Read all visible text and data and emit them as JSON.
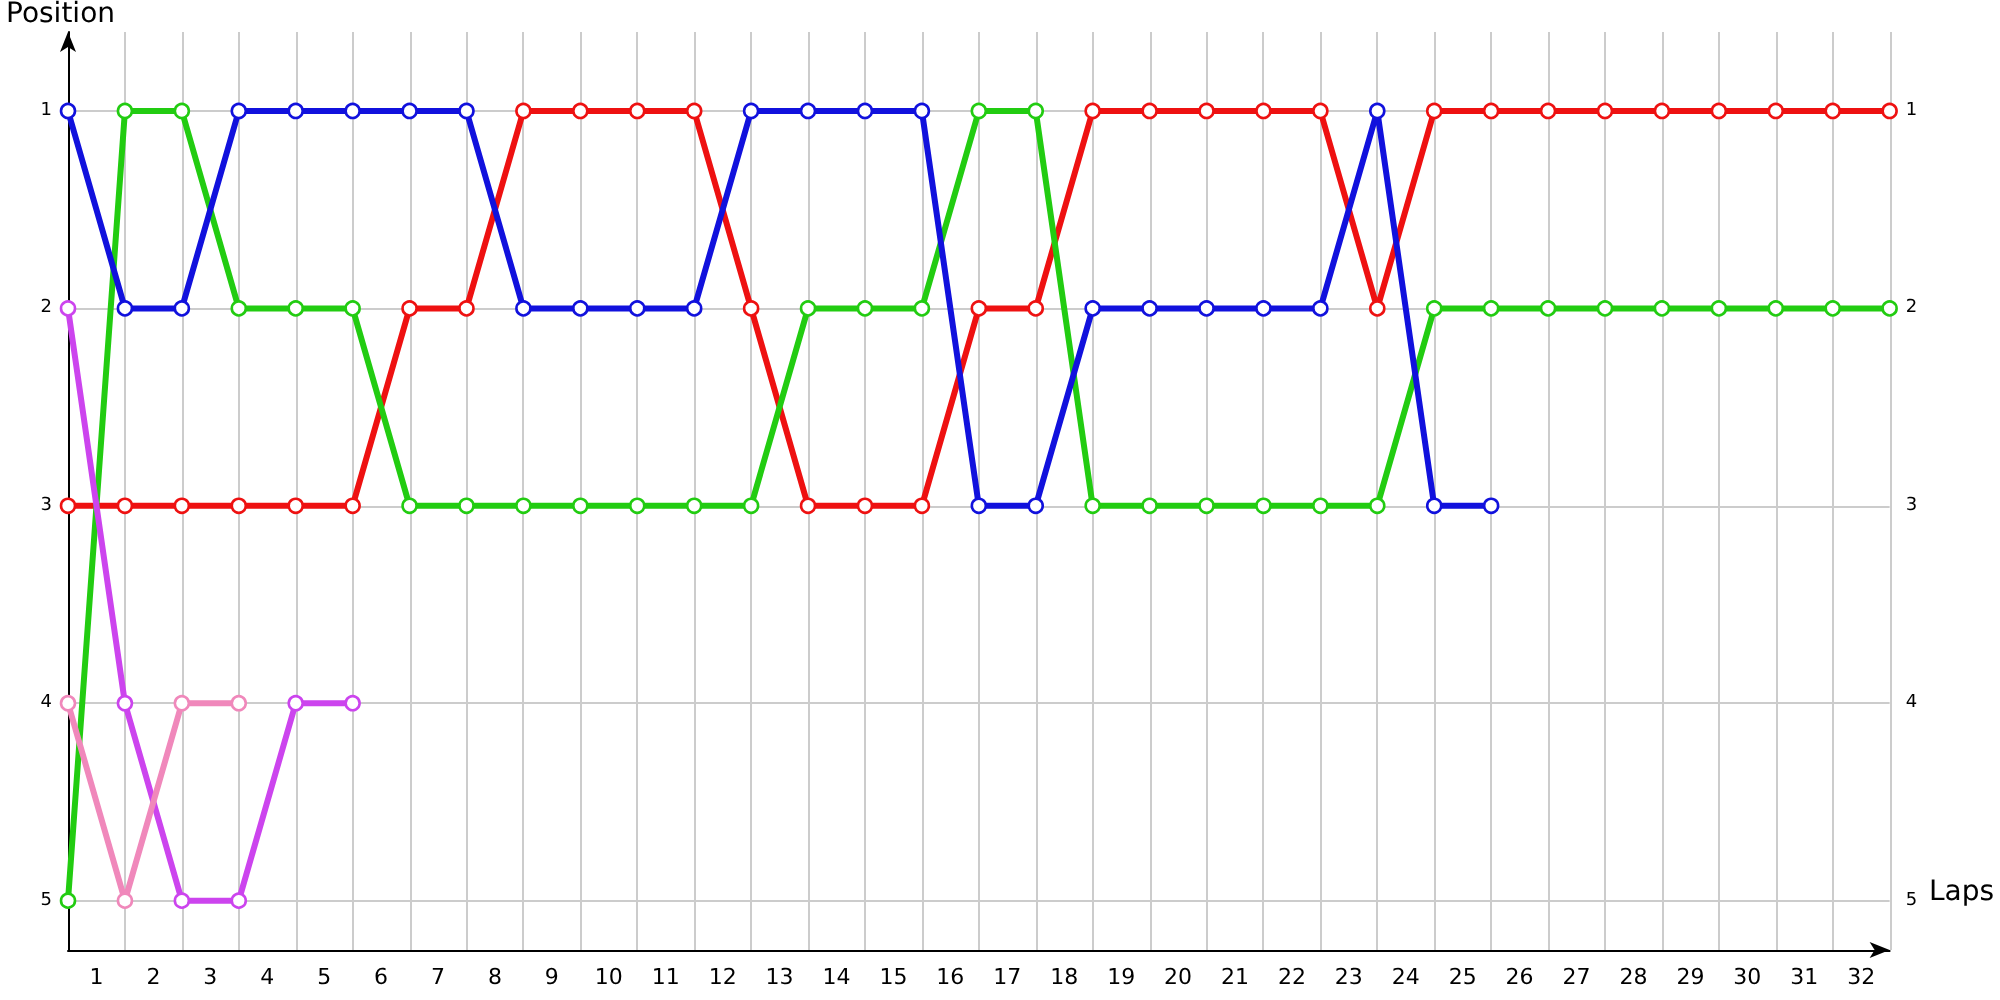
{
  "chart_data": {
    "type": "line",
    "xlabel": "Laps",
    "ylabel": "Position",
    "marker": "circle",
    "line_style": "solid",
    "grid": true,
    "x": [
      0,
      1,
      2,
      3,
      4,
      5,
      6,
      7,
      8,
      9,
      10,
      11,
      12,
      13,
      14,
      15,
      16,
      17,
      18,
      19,
      20,
      21,
      22,
      23,
      24,
      25,
      26,
      27,
      28,
      29,
      30,
      31,
      32
    ],
    "xlim": [
      0,
      32
    ],
    "xticks": [
      {
        "value": 0,
        "label": null
      },
      {
        "value": 0.5,
        "label": "1"
      },
      {
        "value": 1,
        "label": null
      },
      {
        "value": 1.5,
        "label": "2"
      },
      {
        "value": 2,
        "label": null
      },
      {
        "value": 2.5,
        "label": "3"
      },
      {
        "value": 3,
        "label": null
      },
      {
        "value": 3.5,
        "label": "4"
      },
      {
        "value": 4,
        "label": null
      },
      {
        "value": 4.5,
        "label": "5"
      },
      {
        "value": 5,
        "label": null
      },
      {
        "value": 5.5,
        "label": "6"
      },
      {
        "value": 6,
        "label": null
      },
      {
        "value": 6.5,
        "label": "7"
      },
      {
        "value": 7,
        "label": null
      },
      {
        "value": 7.5,
        "label": "8"
      },
      {
        "value": 8,
        "label": null
      },
      {
        "value": 8.5,
        "label": "9"
      },
      {
        "value": 9,
        "label": null
      },
      {
        "value": 9.5,
        "label": "10"
      },
      {
        "value": 10,
        "label": null
      },
      {
        "value": 10.5,
        "label": "11"
      },
      {
        "value": 11,
        "label": null
      },
      {
        "value": 11.5,
        "label": "12"
      },
      {
        "value": 12,
        "label": null
      },
      {
        "value": 12.5,
        "label": "13"
      },
      {
        "value": 13,
        "label": null
      },
      {
        "value": 13.5,
        "label": "14"
      },
      {
        "value": 14,
        "label": null
      },
      {
        "value": 14.5,
        "label": "15"
      },
      {
        "value": 15,
        "label": null
      },
      {
        "value": 15.5,
        "label": "16"
      },
      {
        "value": 16,
        "label": null
      },
      {
        "value": 16.5,
        "label": "17"
      },
      {
        "value": 17,
        "label": null
      },
      {
        "value": 17.5,
        "label": "18"
      },
      {
        "value": 18,
        "label": null
      },
      {
        "value": 18.5,
        "label": "19"
      },
      {
        "value": 19,
        "label": null
      },
      {
        "value": 19.5,
        "label": "20"
      },
      {
        "value": 20,
        "label": null
      },
      {
        "value": 20.5,
        "label": "21"
      },
      {
        "value": 21,
        "label": null
      },
      {
        "value": 21.5,
        "label": "22"
      },
      {
        "value": 22,
        "label": null
      },
      {
        "value": 22.5,
        "label": "23"
      },
      {
        "value": 23,
        "label": null
      },
      {
        "value": 23.5,
        "label": "24"
      },
      {
        "value": 24,
        "label": null
      },
      {
        "value": 24.5,
        "label": "25"
      },
      {
        "value": 25,
        "label": null
      },
      {
        "value": 25.5,
        "label": "26"
      },
      {
        "value": 26,
        "label": null
      },
      {
        "value": 26.5,
        "label": "27"
      },
      {
        "value": 27,
        "label": null
      },
      {
        "value": 27.5,
        "label": "28"
      },
      {
        "value": 28,
        "label": null
      },
      {
        "value": 28.5,
        "label": "29"
      },
      {
        "value": 29,
        "label": null
      },
      {
        "value": 29.5,
        "label": "30"
      },
      {
        "value": 30,
        "label": null
      },
      {
        "value": 30.5,
        "label": "31"
      },
      {
        "value": 31,
        "label": null
      },
      {
        "value": 31.5,
        "label": "32"
      },
      {
        "value": 32,
        "label": null
      }
    ],
    "ylim": [
      5.25,
      0.6
    ],
    "yticks": [
      1,
      2,
      3,
      4,
      5
    ],
    "y2lim": [
      5.25,
      0.6
    ],
    "y2ticks": [
      1,
      2,
      3,
      4,
      5
    ],
    "series": [
      {
        "color": "#ee1111",
        "values": [
          3,
          3,
          3,
          3,
          3,
          3,
          2,
          2,
          1,
          1,
          1,
          1,
          2,
          3,
          3,
          3,
          2,
          2,
          1,
          1,
          1,
          1,
          1,
          2,
          1,
          1,
          1,
          1,
          1,
          1,
          1,
          1,
          1
        ]
      },
      {
        "color": "#22cc11",
        "values": [
          5,
          1,
          1,
          2,
          2,
          2,
          3,
          3,
          3,
          3,
          3,
          3,
          3,
          2,
          2,
          2,
          1,
          1,
          3,
          3,
          3,
          3,
          3,
          3,
          2,
          2,
          2,
          2,
          2,
          2,
          2,
          2,
          2
        ]
      },
      {
        "color": "#1111dd",
        "values": [
          1,
          2,
          2,
          1,
          1,
          1,
          1,
          1,
          2,
          2,
          2,
          2,
          1,
          1,
          1,
          1,
          3,
          3,
          2,
          2,
          2,
          2,
          2,
          1,
          3,
          3,
          null,
          null,
          null,
          null,
          null,
          null,
          null
        ]
      },
      {
        "color": "#cc44ee",
        "values": [
          2,
          4,
          5,
          5,
          4,
          4,
          null,
          null,
          null,
          null,
          null,
          null,
          null,
          null,
          null,
          null,
          null,
          null,
          null,
          null,
          null,
          null,
          null,
          null,
          null,
          null,
          null,
          null,
          null,
          null,
          null,
          null,
          null
        ]
      },
      {
        "color": "#f088bb",
        "values": [
          4,
          5,
          4,
          4,
          null,
          null,
          null,
          null,
          null,
          null,
          null,
          null,
          null,
          null,
          null,
          null,
          null,
          null,
          null,
          null,
          null,
          null,
          null,
          null,
          null,
          null,
          null,
          null,
          null,
          null,
          null,
          null,
          null
        ]
      }
    ]
  }
}
